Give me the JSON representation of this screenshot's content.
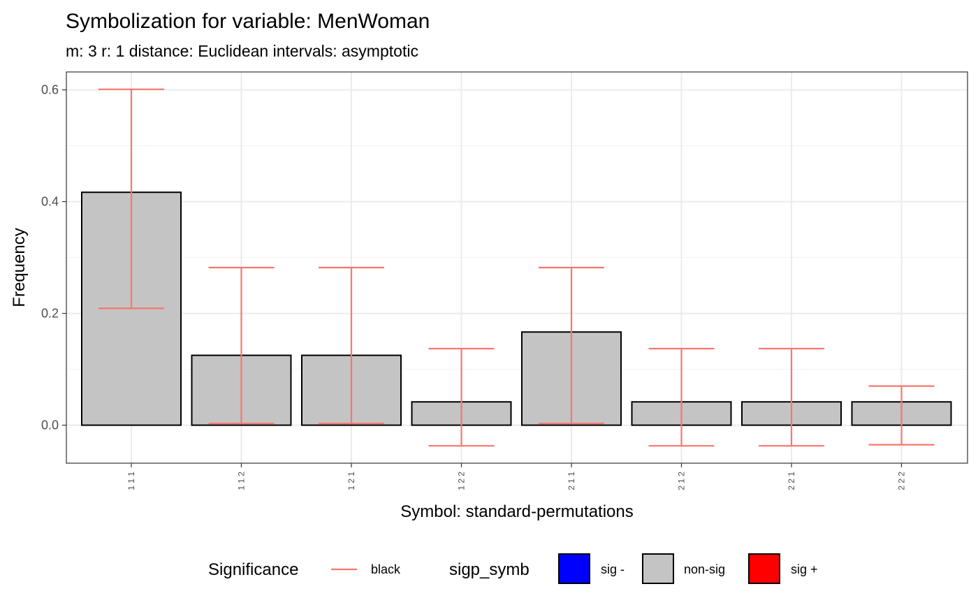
{
  "chart_data": {
    "type": "bar",
    "title": "Symbolization for variable: MenWoman",
    "subtitle": "m: 3  r:  1  distance:  Euclidean  intervals:  asymptotic",
    "xlabel": "Symbol: standard-permutations",
    "ylabel": "Frequency",
    "categories": [
      "1 1 1",
      "1 1 2",
      "1 2 1",
      "1 2 2",
      "2 1 1",
      "2 1 2",
      "2 2 1",
      "2 2 2"
    ],
    "values": [
      0.4167,
      0.125,
      0.125,
      0.0417,
      0.1667,
      0.0417,
      0.0417,
      0.0417
    ],
    "error_lower": [
      0.209,
      0.003,
      0.003,
      -0.037,
      0.003,
      -0.037,
      -0.037,
      -0.035
    ],
    "error_upper": [
      0.601,
      0.282,
      0.282,
      0.137,
      0.282,
      0.137,
      0.137,
      0.07
    ],
    "bar_fill": "#c4c4c4",
    "bar_stroke": "#000000",
    "error_color": "#f8766d",
    "ylim": [
      -0.068,
      0.632
    ],
    "yticks": [
      0.0,
      0.2,
      0.4,
      0.6
    ],
    "ytick_labels": [
      "0.0",
      "0.2",
      "0.4",
      "0.6"
    ],
    "grid": true,
    "legend_position": "bottom",
    "legend": {
      "significance": {
        "title": "Significance",
        "items": [
          {
            "label": "black",
            "color": "#f8766d"
          }
        ]
      },
      "sigp_symb": {
        "title": "sigp_symb",
        "items": [
          {
            "label": "sig -",
            "color": "#0000ff"
          },
          {
            "label": "non-sig",
            "color": "#c4c4c4"
          },
          {
            "label": "sig +",
            "color": "#ff0000"
          }
        ]
      }
    }
  }
}
